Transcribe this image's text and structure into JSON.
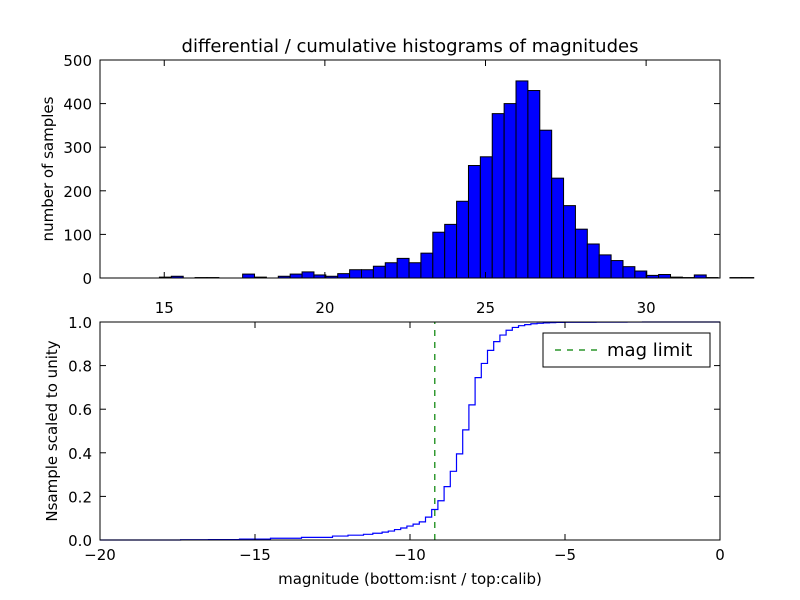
{
  "figure": {
    "title": "differential / cumulative histograms of magnitudes"
  },
  "colors": {
    "bar_fill": "#0000ff",
    "bar_edge": "#000000",
    "cumulative_line": "#0000ff",
    "mag_limit_line": "#008000",
    "axis": "#000000",
    "background": "#ffffff"
  },
  "chart_data": [
    {
      "type": "bar",
      "title": "differential / cumulative histograms of magnitudes",
      "xlabel": "",
      "ylabel": "number of samples",
      "xlim": [
        13.0,
        32.3
      ],
      "ylim": [
        0,
        500
      ],
      "x_ticks": [
        15,
        20,
        25,
        30
      ],
      "y_ticks": [
        0,
        100,
        200,
        300,
        400,
        500
      ],
      "x_tick_position": "top",
      "grid": false,
      "bin_width": 0.37,
      "bin_start": 13.0,
      "values": [
        0,
        0,
        0,
        0,
        0,
        2,
        4,
        0,
        1,
        1,
        0,
        0,
        9,
        2,
        0,
        4,
        9,
        14,
        7,
        4,
        10,
        19,
        19,
        27,
        35,
        45,
        35,
        57,
        105,
        123,
        176,
        258,
        278,
        377,
        400,
        452,
        430,
        339,
        229,
        166,
        112,
        78,
        53,
        40,
        26,
        16,
        6,
        8,
        2,
        1,
        7,
        1,
        0,
        1,
        1,
        0,
        0
      ],
      "series": [
        {
          "name": "",
          "values": [
            0,
            0,
            0,
            0,
            0,
            2,
            4,
            0,
            1,
            1,
            0,
            0,
            9,
            2,
            0,
            4,
            9,
            14,
            7,
            4,
            10,
            19,
            19,
            27,
            35,
            45,
            35,
            57,
            105,
            123,
            176,
            258,
            278,
            377,
            400,
            452,
            430,
            339,
            229,
            166,
            112,
            78,
            53,
            40,
            26,
            16,
            6,
            8,
            2,
            1,
            7,
            1,
            0,
            1,
            1,
            0,
            0
          ]
        }
      ]
    },
    {
      "type": "line",
      "title": "",
      "xlabel": "magnitude (bottom:isnt / top:calib)",
      "ylabel": "Nsample scaled to unity",
      "xlim": [
        -20,
        0
      ],
      "ylim": [
        0.0,
        1.0
      ],
      "x_ticks": [
        -20,
        -15,
        -10,
        -5,
        0
      ],
      "y_ticks": [
        0.0,
        0.2,
        0.4,
        0.6,
        0.8,
        1.0
      ],
      "y_tick_labels": [
        "0.0",
        "0.2",
        "0.4",
        "0.6",
        "0.8",
        "1.0"
      ],
      "grid": false,
      "legend": {
        "position": "top-right",
        "entries": [
          "mag limit"
        ]
      },
      "series": [
        {
          "name": "",
          "style": "step",
          "x": [
            -20,
            -17.4,
            -16.5,
            -15.5,
            -14.5,
            -13.5,
            -12.5,
            -12.0,
            -11.5,
            -11.2,
            -10.9,
            -10.7,
            -10.5,
            -10.3,
            -10.1,
            -9.9,
            -9.7,
            -9.5,
            -9.3,
            -9.1,
            -8.9,
            -8.7,
            -8.5,
            -8.3,
            -8.1,
            -7.9,
            -7.7,
            -7.5,
            -7.3,
            -7.1,
            -6.9,
            -6.7,
            -6.5,
            -6.3,
            -6.1,
            -5.9,
            -5.7,
            -5.5,
            -5.3,
            -5.0,
            -4.5,
            -4.0,
            -3.5,
            -3.0,
            -2.5,
            -2.0,
            -1.0,
            -0.1
          ],
          "y": [
            0.0,
            0.001,
            0.002,
            0.004,
            0.008,
            0.012,
            0.018,
            0.022,
            0.026,
            0.031,
            0.036,
            0.041,
            0.048,
            0.055,
            0.064,
            0.073,
            0.083,
            0.105,
            0.14,
            0.18,
            0.245,
            0.315,
            0.395,
            0.505,
            0.62,
            0.745,
            0.81,
            0.87,
            0.91,
            0.94,
            0.962,
            0.975,
            0.983,
            0.988,
            0.992,
            0.994,
            0.996,
            0.997,
            0.998,
            0.9985,
            0.999,
            0.9993,
            0.9996,
            0.9998,
            1.0,
            1.0,
            1.0,
            1.0
          ]
        },
        {
          "name": "mag limit",
          "style": "dashed-vertical",
          "x": [
            -9.2,
            -9.2
          ],
          "y": [
            0.0,
            1.0
          ]
        }
      ]
    }
  ]
}
